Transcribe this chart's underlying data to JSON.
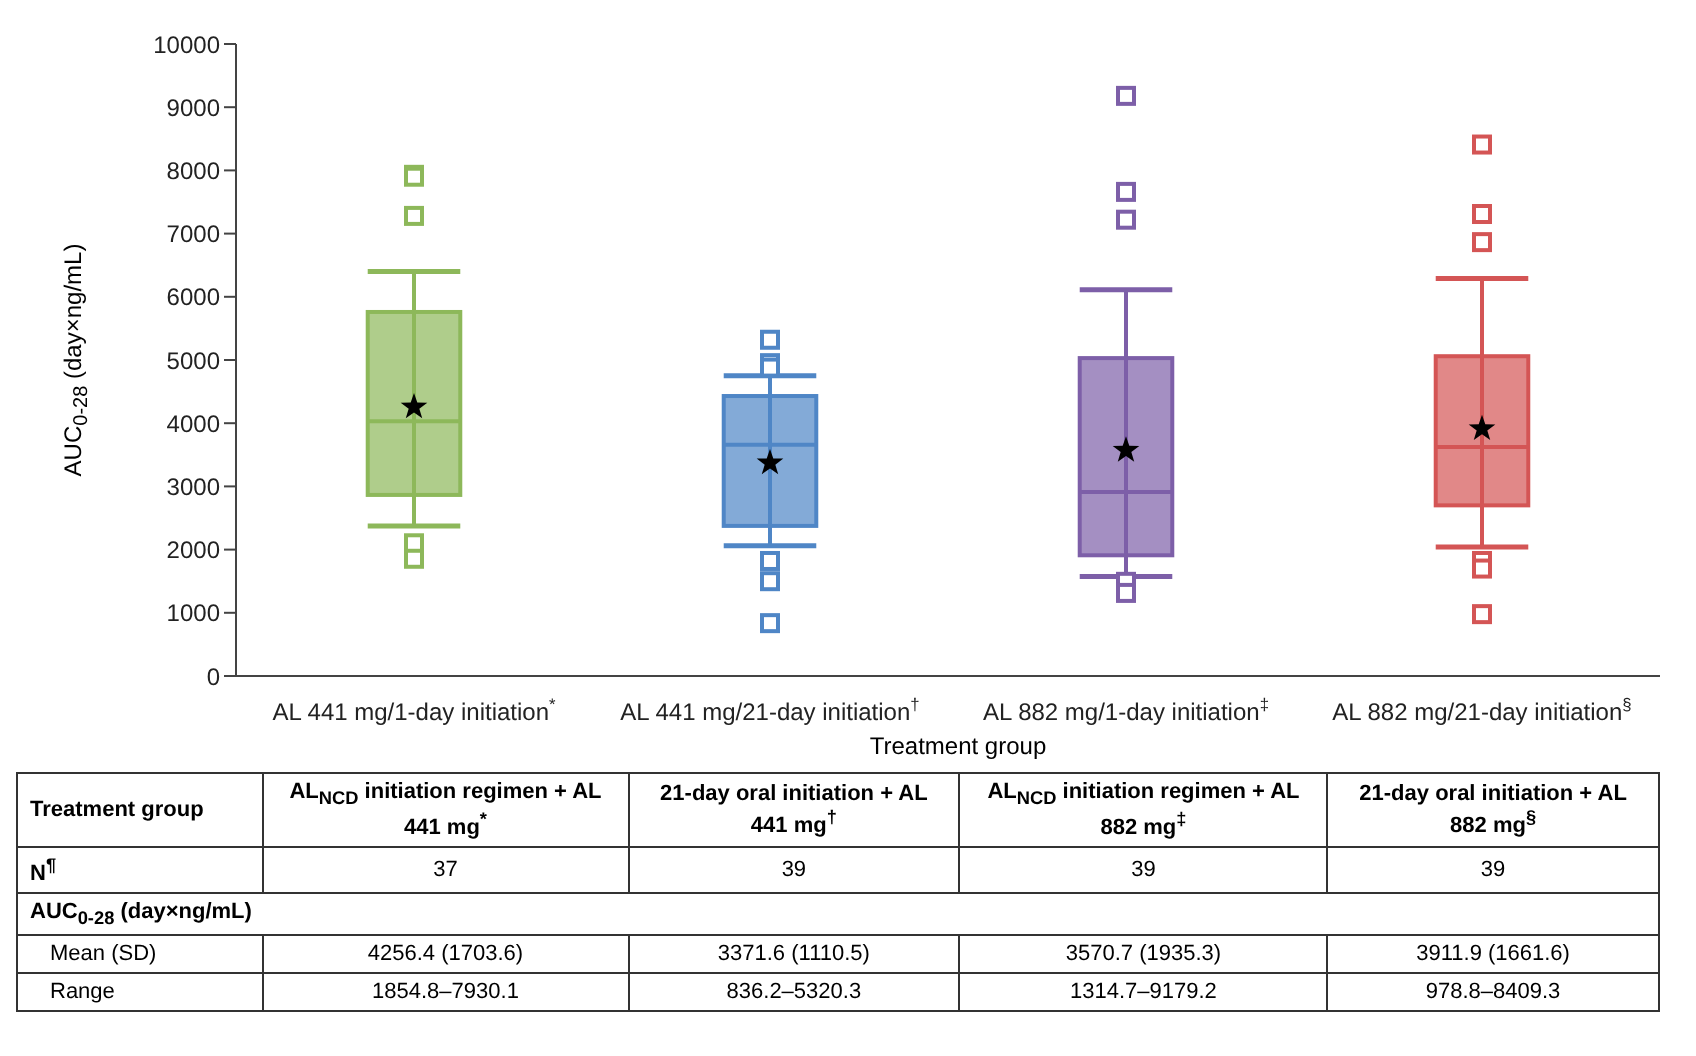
{
  "chart_data": {
    "type": "box",
    "categories": [
      "AL 441 mg/1-day initiation$^{*}$",
      "AL 441 mg/21-day initiation$^{†}$",
      "AL 882 mg/1-day initiation$^{‡}$",
      "AL 882 mg/21-day initiation$^{§}$"
    ],
    "colors": [
      "#8db85a",
      "#4f86c6",
      "#7d5fa8",
      "#d45555"
    ],
    "boxes": [
      {
        "low": 2375,
        "q1": 2865,
        "median": 4030,
        "q3": 5760,
        "high": 6400,
        "mean": 4256.4,
        "outliers": [
          7930.1,
          7900,
          7280,
          2100,
          1854.8
        ]
      },
      {
        "low": 2060,
        "q1": 2375,
        "median": 3660,
        "q3": 4430,
        "high": 4750,
        "mean": 3371.6,
        "outliers": [
          5320.3,
          4950,
          4880,
          1820,
          1500,
          836.2
        ]
      },
      {
        "low": 1575,
        "q1": 1910,
        "median": 2910,
        "q3": 5030,
        "high": 6110,
        "mean": 3570.7,
        "outliers": [
          9179.2,
          7660,
          7220,
          1490,
          1314.7
        ]
      },
      {
        "low": 2040,
        "q1": 2700,
        "median": 3625,
        "q3": 5060,
        "high": 6290,
        "mean": 3911.9,
        "outliers": [
          8409.3,
          7310,
          6865,
          1820,
          1700,
          978.8
        ]
      }
    ],
    "ylim": [
      0,
      10000
    ],
    "yticks": [
      0,
      1000,
      2000,
      3000,
      4000,
      5000,
      6000,
      7000,
      8000,
      9000,
      10000
    ],
    "xlabel": "Treatment group",
    "ylabel": "AUC$_{0-28}$ (day×ng/mL)",
    "marker": "square",
    "grid": false,
    "legend": false,
    "annotations": [
      "Treatment group",
      "AL$_{NCD}$ initiation regimen + AL 441 mg$^{*}$",
      "21-day oral initiation + AL 441 mg$^{†}$",
      "AL$_{NCD}$ initiation regimen + AL 882 mg$^{‡}$",
      "21-day oral initiation + AL 882 mg$^{§}$",
      "N$^{¶}$",
      "37",
      "39",
      "39",
      "39",
      "AUC$_{0-28}$ (day×ng/mL)",
      "Mean (SD)",
      "4256.4 (1703.6)",
      "3371.6 (1110.5)",
      "3570.7 (1935.3)",
      "3911.9 (1661.6)",
      "Range",
      "1854.8–7930.1",
      "836.2–5320.3",
      "1314.7–9179.2",
      "978.8–8409.3"
    ]
  }
}
